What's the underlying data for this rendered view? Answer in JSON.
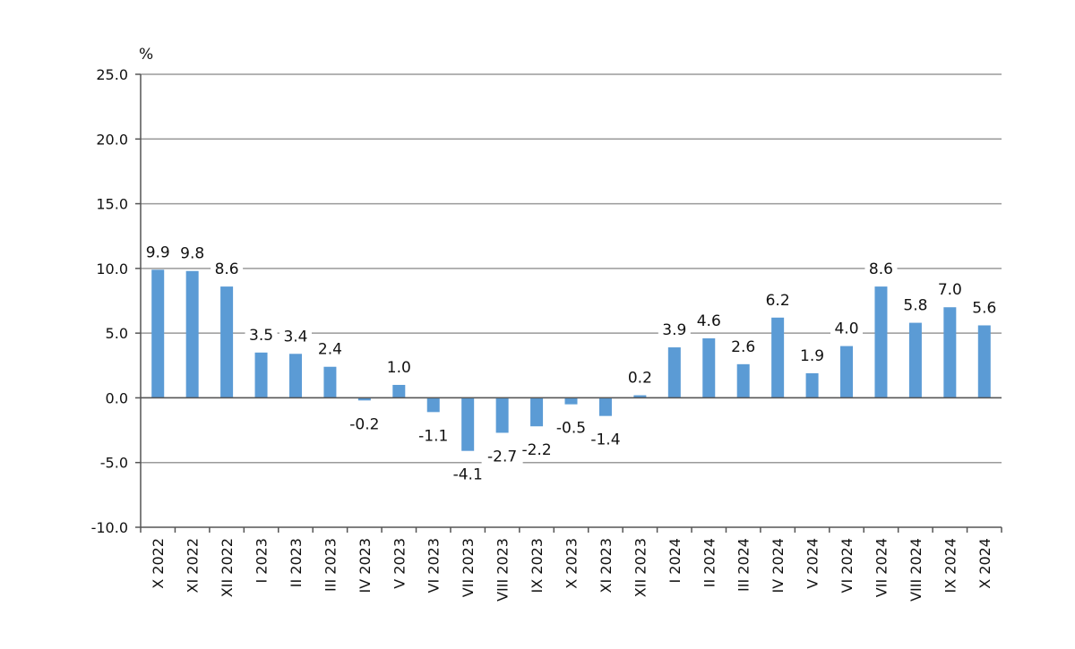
{
  "chart_data": {
    "type": "bar",
    "title": "",
    "xlabel": "",
    "ylabel": "%",
    "ylim": [
      -10,
      25
    ],
    "yticks": [
      "25.0",
      "20.0",
      "15.0",
      "10.0",
      "5.0",
      "0.0",
      "-5.0",
      "-10.0"
    ],
    "ytick_values": [
      25,
      20,
      15,
      10,
      5,
      0,
      -5,
      -10
    ],
    "grid": true,
    "legend": "none",
    "bar_color": "#5B9BD5",
    "grid_color": "#9a9a9a",
    "categories": [
      "X 2022",
      "XI 2022",
      "XII 2022",
      "I 2023",
      "II 2023",
      "III 2023",
      "IV 2023",
      "V 2023",
      "VI 2023",
      "VII 2023",
      "VIII 2023",
      "IX 2023",
      "X 2023",
      "XI 2023",
      "XII 2023",
      "I 2024",
      "II 2024",
      "III 2024",
      "IV 2024",
      "V 2024",
      "VI 2024",
      "VII 2024",
      "VIII 2024",
      "IX 2024",
      "X 2024"
    ],
    "values": [
      9.9,
      9.8,
      8.6,
      3.5,
      3.4,
      2.4,
      -0.2,
      1.0,
      -1.1,
      -4.1,
      -2.7,
      -2.2,
      -0.5,
      -1.4,
      0.2,
      3.9,
      4.6,
      2.6,
      6.2,
      1.9,
      4.0,
      8.6,
      5.8,
      7.0,
      5.6
    ],
    "data_labels": [
      "9.9",
      "9.8",
      "8.6",
      "3.5",
      "3.4",
      "2.4",
      "-0.2",
      "1.0",
      "-1.1",
      "-4.1",
      "-2.7",
      "-2.2",
      "-0.5",
      "-1.4",
      "0.2",
      "3.9",
      "4.6",
      "2.6",
      "6.2",
      "1.9",
      "4.0",
      "8.6",
      "5.8",
      "7.0",
      "5.6"
    ]
  }
}
